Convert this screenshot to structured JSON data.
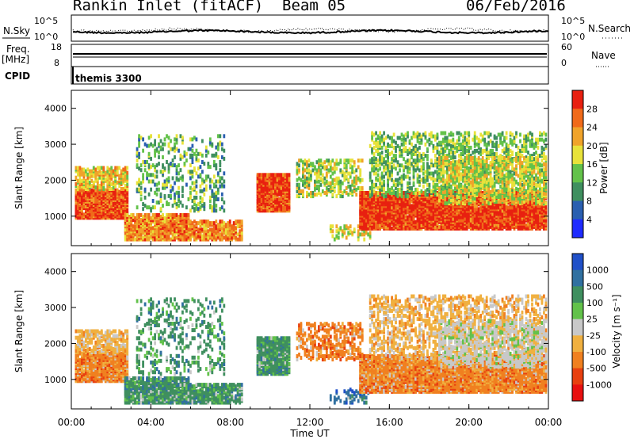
{
  "header": {
    "station": "Rankin Inlet (fitACF)",
    "beam": "Beam 05",
    "date": "06/Feb/2016"
  },
  "params": {
    "nsky_label": "N.Sky",
    "nsearch_label": "N.Search",
    "freq_label": "Freq.",
    "freq_unit": "[MHz]",
    "nave_label": "Nave",
    "cpid_label": "CPID",
    "cpid_text": "themis 3300",
    "noise_ticks": [
      "10^5",
      "10^0"
    ],
    "noise_right_ticks": [
      "10^5",
      "10^0"
    ],
    "freq_ticks": [
      "18",
      "8"
    ],
    "nave_ticks": [
      "60",
      "0"
    ]
  },
  "chart_data": [
    {
      "type": "heatmap",
      "name": "Power",
      "ylabel": "Slant Range [km]",
      "xlabel": "",
      "x_ticks": [
        "00:00",
        "04:00",
        "08:00",
        "12:00",
        "16:00",
        "20:00",
        "00:00"
      ],
      "y_ticks": [
        1000,
        2000,
        3000,
        4000
      ],
      "ylim": [
        180,
        4500
      ],
      "colorbar_label": "Power [dB]",
      "colorbar_ticks": [
        4,
        8,
        12,
        16,
        20,
        24,
        28
      ],
      "colors": [
        "#1f2bff",
        "#2a5fb0",
        "#3f8f5f",
        "#63c24a",
        "#e8e23a",
        "#f0a32a",
        "#f06a1a",
        "#e82010"
      ]
    },
    {
      "type": "heatmap",
      "name": "Velocity",
      "ylabel": "Slant Range [km]",
      "xlabel": "Time UT",
      "x_ticks": [
        "00:00",
        "04:00",
        "08:00",
        "12:00",
        "16:00",
        "20:00",
        "00:00"
      ],
      "y_ticks": [
        1000,
        2000,
        3000,
        4000
      ],
      "ylim": [
        180,
        4500
      ],
      "colorbar_label": "Velocity [m s⁻¹]",
      "colorbar_ticks": [
        1000,
        500,
        100,
        25,
        -25,
        -100,
        -500,
        -1000
      ],
      "colors": [
        "#2050c8",
        "#3070a0",
        "#3f8f5f",
        "#62c24a",
        "#c8c8c8",
        "#f0b040",
        "#f08020",
        "#e84010",
        "#e81010"
      ]
    }
  ]
}
